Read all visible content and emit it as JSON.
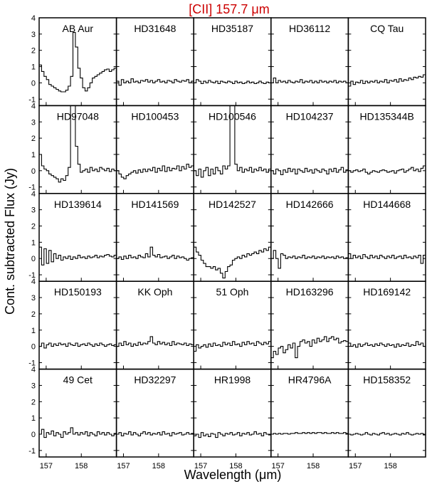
{
  "title": "[CII] 157.7 μm",
  "title_color": "#cc0000",
  "xlabel": "Wavelength (μm)",
  "ylabel": "Cont. subtracted Flux (Jy)",
  "chart_data": {
    "type": "line",
    "title": "[CII] 157.7 μm",
    "xlabel": "Wavelength (μm)",
    "ylabel": "Cont. subtracted Flux (Jy)",
    "xlim": [
      156.8,
      159.0
    ],
    "ylim": [
      -1.4,
      4.0
    ],
    "yticks": [
      -1,
      0,
      1,
      2,
      3,
      4
    ],
    "xticks": [
      157,
      158
    ],
    "grid": false,
    "line_style": "step",
    "panels": [
      {
        "name": "AB Aur",
        "values": [
          1.1,
          0.7,
          0.4,
          0.2,
          -0.1,
          -0.2,
          -0.3,
          -0.4,
          -0.5,
          -0.55,
          -0.55,
          -0.45,
          -0.2,
          0.4,
          3.1,
          2.2,
          0.9,
          0.3,
          -0.3,
          -0.5,
          -0.3,
          0.0,
          0.3,
          0.4,
          0.5,
          0.6,
          0.7,
          0.8,
          0.85,
          0.7,
          0.8,
          0.9
        ]
      },
      {
        "name": "HD31648",
        "values": [
          0.1,
          -0.15,
          0.2,
          0.0,
          0.1,
          0.0,
          0.25,
          0.05,
          0.1,
          0.0,
          0.15,
          0.1,
          0.2,
          0.05,
          0.15,
          0.0,
          0.1,
          0.2,
          0.05,
          0.1,
          0.0,
          0.15,
          0.1,
          0.0,
          0.2,
          0.1,
          0.05,
          0.15,
          0.1,
          0.2,
          0.0,
          0.1
        ]
      },
      {
        "name": "HD35187",
        "values": [
          0.0,
          0.2,
          0.1,
          -0.05,
          0.1,
          0.0,
          0.15,
          0.05,
          0.0,
          0.1,
          -0.05,
          0.1,
          0.05,
          0.0,
          0.1,
          0.05,
          -0.05,
          0.1,
          0.0,
          0.05,
          -0.05,
          0.0,
          0.1,
          0.0,
          0.05,
          -0.05,
          0.0,
          0.1,
          0.0,
          -0.05,
          0.05,
          0.0
        ]
      },
      {
        "name": "HD36112",
        "values": [
          0.0,
          0.3,
          0.0,
          0.15,
          0.05,
          0.1,
          0.0,
          0.15,
          0.05,
          0.0,
          0.1,
          0.05,
          0.2,
          0.0,
          0.1,
          0.05,
          0.15,
          0.0,
          0.1,
          0.0,
          0.15,
          0.05,
          0.1,
          0.0,
          0.1,
          0.05,
          0.15,
          0.0,
          0.1,
          0.05,
          0.1,
          0.0
        ]
      },
      {
        "name": "CQ Tau",
        "values": [
          -0.2,
          0.1,
          -0.1,
          0.05,
          0.0,
          0.15,
          -0.05,
          0.1,
          0.0,
          0.1,
          0.05,
          0.15,
          0.0,
          0.1,
          0.05,
          0.2,
          0.0,
          0.15,
          0.1,
          0.2,
          0.05,
          0.25,
          0.1,
          0.2,
          0.15,
          0.3,
          0.2,
          0.35,
          0.3,
          0.4,
          0.35,
          0.5
        ]
      },
      {
        "name": "HD97048",
        "values": [
          1.0,
          0.3,
          0.1,
          0.0,
          -0.2,
          -0.3,
          -0.4,
          -0.5,
          -0.7,
          -0.5,
          -0.6,
          -0.3,
          0.2,
          4.0,
          4.0,
          1.5,
          0.4,
          -0.1,
          0.0,
          0.1,
          -0.1,
          0.2,
          0.0,
          0.1,
          -0.05,
          0.2,
          0.1,
          0.0,
          0.15,
          -0.05,
          0.1,
          0.0
        ]
      },
      {
        "name": "HD100453",
        "values": [
          0.0,
          -0.2,
          -0.4,
          -0.5,
          -0.3,
          -0.2,
          -0.1,
          0.0,
          -0.15,
          0.05,
          -0.1,
          0.1,
          -0.05,
          0.1,
          0.0,
          0.2,
          -0.1,
          0.15,
          0.0,
          0.3,
          -0.05,
          0.2,
          0.0,
          0.15,
          0.1,
          0.3,
          0.0,
          0.25,
          0.1,
          0.4,
          0.2,
          0.3
        ]
      },
      {
        "name": "HD100546",
        "values": [
          0.0,
          -0.3,
          0.1,
          -0.4,
          0.0,
          0.2,
          -0.3,
          0.1,
          -0.2,
          0.2,
          0.0,
          -0.2,
          0.3,
          0.1,
          0.3,
          4.0,
          4.0,
          0.4,
          0.0,
          0.2,
          -0.1,
          0.1,
          0.0,
          0.2,
          -0.1,
          0.1,
          0.0,
          0.2,
          0.0,
          0.1,
          -0.1,
          0.1
        ]
      },
      {
        "name": "HD104237",
        "values": [
          0.0,
          -0.2,
          0.1,
          0.0,
          -0.25,
          0.05,
          -0.1,
          0.15,
          -0.05,
          0.1,
          -0.2,
          0.1,
          0.0,
          -0.1,
          0.15,
          -0.05,
          0.05,
          -0.15,
          0.1,
          0.0,
          -0.1,
          0.1,
          0.0,
          -0.2,
          0.1,
          -0.05,
          0.15,
          -0.1,
          0.05,
          0.2,
          -0.1,
          0.05
        ]
      },
      {
        "name": "HD135344B",
        "values": [
          0.0,
          -0.1,
          0.0,
          0.05,
          -0.05,
          0.0,
          0.1,
          -0.1,
          -0.2,
          -0.1,
          0.0,
          -0.05,
          -0.1,
          0.0,
          0.05,
          0.0,
          -0.1,
          -0.05,
          0.0,
          -0.15,
          0.0,
          0.05,
          0.1,
          -0.1,
          0.0,
          0.1,
          0.2,
          0.0,
          0.1,
          -0.05,
          0.15,
          0.3
        ]
      },
      {
        "name": "HD139614",
        "values": [
          0.7,
          -0.4,
          0.6,
          -0.3,
          0.5,
          -0.2,
          0.3,
          0.0,
          0.2,
          -0.1,
          0.1,
          0.0,
          0.15,
          -0.05,
          0.1,
          0.0,
          0.2,
          0.05,
          0.1,
          0.0,
          0.15,
          0.05,
          0.1,
          0.2,
          0.05,
          0.15,
          0.1,
          0.2,
          0.25,
          0.15,
          0.1,
          0.2
        ]
      },
      {
        "name": "HD141569",
        "values": [
          0.0,
          0.1,
          -0.05,
          0.15,
          0.0,
          0.2,
          0.05,
          0.1,
          0.0,
          0.2,
          0.1,
          0.05,
          0.3,
          0.1,
          0.7,
          0.2,
          0.1,
          0.25,
          0.05,
          0.1,
          0.15,
          0.0,
          0.1,
          0.2,
          0.0,
          0.15,
          0.05,
          0.1,
          0.0,
          -0.1,
          0.0,
          0.05
        ]
      },
      {
        "name": "HD142527",
        "values": [
          0.7,
          0.4,
          0.2,
          -0.1,
          -0.3,
          -0.5,
          -0.5,
          -0.6,
          -0.5,
          -0.7,
          -0.6,
          -0.9,
          -1.2,
          -0.8,
          -0.5,
          -0.4,
          -0.1,
          0.0,
          0.1,
          0.0,
          0.2,
          0.1,
          0.3,
          0.2,
          0.3,
          0.4,
          0.3,
          0.5,
          0.4,
          0.6,
          0.5,
          0.7
        ]
      },
      {
        "name": "HD142666",
        "values": [
          0.0,
          0.5,
          0.0,
          -0.6,
          0.3,
          0.2,
          0.0,
          0.1,
          0.05,
          0.15,
          0.0,
          0.1,
          0.05,
          0.2,
          0.0,
          0.1,
          0.05,
          0.15,
          0.0,
          0.1,
          0.05,
          0.15,
          0.0,
          0.1,
          0.05,
          0.1,
          0.0,
          0.15,
          0.05,
          0.1,
          0.0,
          0.05
        ]
      },
      {
        "name": "HD144668",
        "values": [
          0.3,
          0.0,
          0.2,
          0.05,
          0.15,
          0.0,
          0.25,
          0.1,
          0.0,
          0.2,
          0.05,
          0.15,
          0.0,
          0.2,
          0.1,
          0.0,
          0.15,
          0.05,
          0.2,
          0.0,
          0.1,
          0.15,
          0.0,
          0.2,
          0.05,
          0.1,
          0.0,
          0.15,
          0.05,
          0.2,
          -0.3,
          0.2
        ]
      },
      {
        "name": "HD150193",
        "values": [
          0.0,
          0.2,
          -0.1,
          0.1,
          0.2,
          0.0,
          0.15,
          0.05,
          0.2,
          0.1,
          0.15,
          0.0,
          0.2,
          0.1,
          0.05,
          0.2,
          0.0,
          0.1,
          0.15,
          0.05,
          0.2,
          0.1,
          0.0,
          0.15,
          0.05,
          0.2,
          0.1,
          0.0,
          0.1,
          0.15,
          0.05,
          0.1
        ]
      },
      {
        "name": "KK Oph",
        "values": [
          0.0,
          0.2,
          0.05,
          0.3,
          0.1,
          0.2,
          0.0,
          0.15,
          0.05,
          0.25,
          0.1,
          0.2,
          0.15,
          0.3,
          0.6,
          0.2,
          0.1,
          0.3,
          0.15,
          0.25,
          0.1,
          0.2,
          0.05,
          0.3,
          0.1,
          0.2,
          0.15,
          0.1,
          0.2,
          0.05,
          0.15,
          0.1
        ]
      },
      {
        "name": "51 Oph",
        "values": [
          -0.3,
          0.1,
          -0.1,
          0.0,
          0.1,
          -0.05,
          0.15,
          0.0,
          0.2,
          0.05,
          0.1,
          0.0,
          0.25,
          0.1,
          0.2,
          0.05,
          0.3,
          0.1,
          0.15,
          0.0,
          0.25,
          0.1,
          0.3,
          0.15,
          0.2,
          0.05,
          0.3,
          0.2,
          0.1,
          0.25,
          0.15,
          0.3
        ]
      },
      {
        "name": "HD163296",
        "values": [
          -0.7,
          -0.3,
          -0.5,
          -0.1,
          0.0,
          -0.4,
          -0.2,
          0.1,
          -0.1,
          0.2,
          -0.7,
          0.0,
          0.3,
          0.4,
          0.2,
          0.3,
          0.0,
          0.4,
          0.2,
          0.5,
          0.3,
          0.4,
          0.6,
          0.3,
          0.5,
          0.6,
          0.4,
          0.5,
          0.2,
          0.3,
          0.35,
          0.3
        ]
      },
      {
        "name": "HD169142",
        "values": [
          0.2,
          0.0,
          0.1,
          -0.05,
          0.15,
          0.0,
          0.1,
          0.2,
          0.05,
          0.1,
          0.0,
          0.15,
          0.05,
          0.2,
          0.1,
          0.0,
          0.15,
          0.05,
          0.1,
          -0.05,
          0.15,
          0.0,
          0.1,
          0.05,
          0.2,
          0.0,
          0.1,
          0.05,
          0.3,
          0.1,
          0.2,
          0.0
        ]
      },
      {
        "name": "49 Cet",
        "values": [
          0.0,
          0.3,
          -0.2,
          0.1,
          0.0,
          0.2,
          -0.1,
          0.1,
          0.0,
          -0.2,
          0.15,
          0.0,
          0.1,
          0.4,
          0.0,
          0.1,
          -0.05,
          0.1,
          0.0,
          0.15,
          -0.1,
          0.1,
          0.0,
          -0.1,
          0.15,
          0.0,
          0.1,
          -0.05,
          0.1,
          0.0,
          -0.1,
          0.05
        ]
      },
      {
        "name": "HD32297",
        "values": [
          0.0,
          0.1,
          -0.1,
          0.05,
          0.0,
          0.15,
          -0.05,
          0.1,
          0.0,
          -0.1,
          0.05,
          0.15,
          0.0,
          0.1,
          -0.05,
          0.05,
          0.0,
          0.1,
          -0.05,
          0.15,
          0.0,
          0.05,
          -0.1,
          0.1,
          0.0,
          0.05,
          0.1,
          -0.05,
          0.0,
          0.1,
          0.0,
          0.05
        ]
      },
      {
        "name": "HR1998",
        "values": [
          -0.1,
          0.0,
          -0.2,
          0.1,
          -0.1,
          0.0,
          -0.15,
          0.05,
          0.0,
          -0.2,
          0.1,
          0.0,
          -0.1,
          0.05,
          0.0,
          0.1,
          -0.05,
          0.0,
          0.1,
          -0.1,
          0.05,
          0.0,
          0.1,
          -0.05,
          0.0,
          0.15,
          0.0,
          0.05,
          -0.1,
          0.1,
          0.0,
          -0.05
        ]
      },
      {
        "name": "HR4796A",
        "values": [
          0.0,
          0.05,
          0.0,
          0.05,
          0.0,
          0.05,
          0.05,
          0.0,
          0.05,
          0.05,
          0.1,
          0.05,
          0.05,
          0.1,
          0.05,
          0.1,
          0.05,
          0.1,
          0.05,
          0.1,
          0.1,
          0.05,
          0.1,
          0.05,
          0.05,
          0.1,
          0.05,
          0.1,
          0.05,
          0.05,
          0.1,
          0.05
        ]
      },
      {
        "name": "HD158352",
        "values": [
          0.0,
          -0.05,
          0.0,
          0.05,
          0.0,
          -0.05,
          0.0,
          0.1,
          0.0,
          -0.05,
          0.05,
          0.0,
          -0.05,
          0.05,
          0.1,
          0.0,
          0.05,
          -0.05,
          0.0,
          0.05,
          0.0,
          -0.05,
          0.05,
          0.0,
          0.1,
          0.0,
          -0.05,
          0.0,
          0.05,
          0.0,
          0.05,
          -0.05
        ]
      }
    ]
  }
}
